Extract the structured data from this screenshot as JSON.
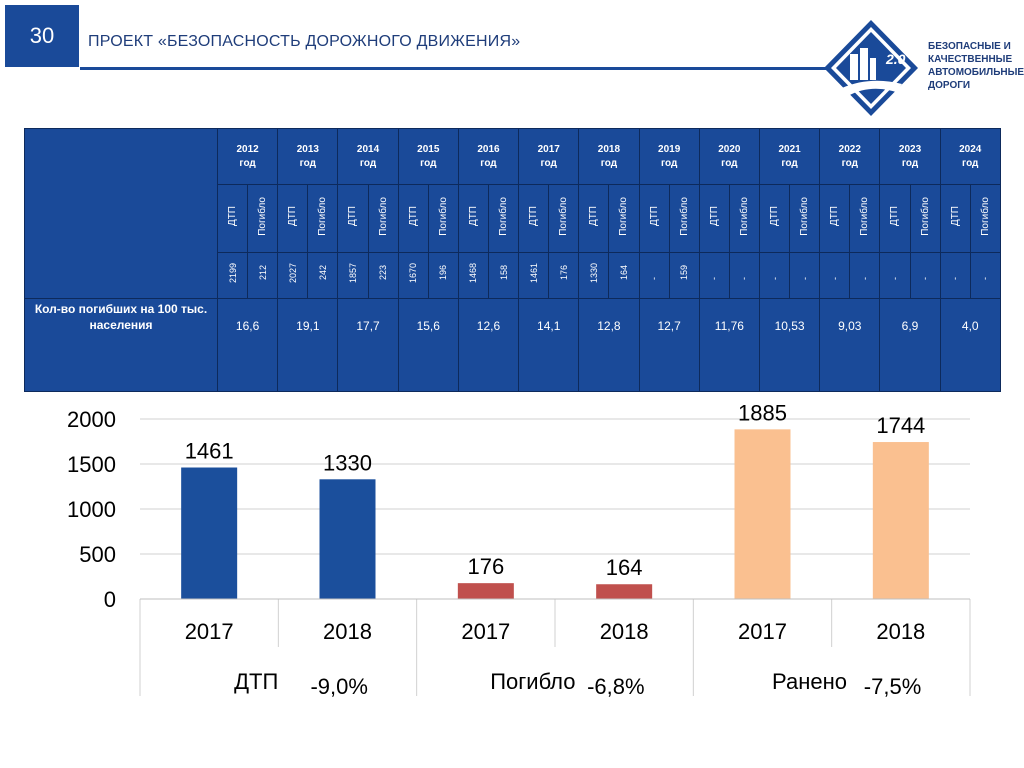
{
  "header": {
    "slide_number": "30",
    "title": "ПРОЕКТ «БЕЗОПАСНОСТЬ ДОРОЖНОГО ДВИЖЕНИЯ»",
    "logo_badge": "2.0",
    "logo_lines": [
      "БЕЗОПАСНЫЕ И",
      "КАЧЕСТВЕННЫЕ",
      "АВТОМОБИЛЬНЫЕ",
      "ДОРОГИ"
    ]
  },
  "table": {
    "year_word": "год",
    "sub_labels": [
      "ДТП",
      "Погибло"
    ],
    "rate_label": "Кол-во погибших на 100 тыс. населения",
    "years": [
      {
        "year": "2012",
        "dtp": "2199",
        "dead": "212",
        "rate": "16,6"
      },
      {
        "year": "2013",
        "dtp": "2027",
        "dead": "242",
        "rate": "19,1"
      },
      {
        "year": "2014",
        "dtp": "1857",
        "dead": "223",
        "rate": "17,7"
      },
      {
        "year": "2015",
        "dtp": "1670",
        "dead": "196",
        "rate": "15,6"
      },
      {
        "year": "2016",
        "dtp": "1468",
        "dead": "158",
        "rate": "12,6"
      },
      {
        "year": "2017",
        "dtp": "1461",
        "dead": "176",
        "rate": "14,1"
      },
      {
        "year": "2018",
        "dtp": "1330",
        "dead": "164",
        "rate": "12,8"
      },
      {
        "year": "2019",
        "dtp": "-",
        "dead": "159",
        "rate": "12,7"
      },
      {
        "year": "2020",
        "dtp": "-",
        "dead": "-",
        "rate": "11,76"
      },
      {
        "year": "2021",
        "dtp": "-",
        "dead": "-",
        "rate": "10,53"
      },
      {
        "year": "2022",
        "dtp": "-",
        "dead": "-",
        "rate": "9,03"
      },
      {
        "year": "2023",
        "dtp": "-",
        "dead": "-",
        "rate": "6,9"
      },
      {
        "year": "2024",
        "dtp": "-",
        "dead": "-",
        "rate": "4,0"
      }
    ]
  },
  "chart_data": {
    "type": "bar",
    "ylim": [
      0,
      2000
    ],
    "yticks": [
      0,
      500,
      1000,
      1500,
      2000
    ],
    "grid": true,
    "groups": [
      {
        "name": "ДТП",
        "change": "-9,0%",
        "color": "#1b4f9c",
        "bars": [
          {
            "x": "2017",
            "value": 1461
          },
          {
            "x": "2018",
            "value": 1330
          }
        ]
      },
      {
        "name": "Погибло",
        "change": "-6,8%",
        "color": "#c0504d",
        "bars": [
          {
            "x": "2017",
            "value": 176
          },
          {
            "x": "2018",
            "value": 164
          }
        ]
      },
      {
        "name": "Ранено",
        "change": "-7,5%",
        "color": "#fac090",
        "bars": [
          {
            "x": "2017",
            "value": 1885
          },
          {
            "x": "2018",
            "value": 1744
          }
        ]
      }
    ]
  }
}
